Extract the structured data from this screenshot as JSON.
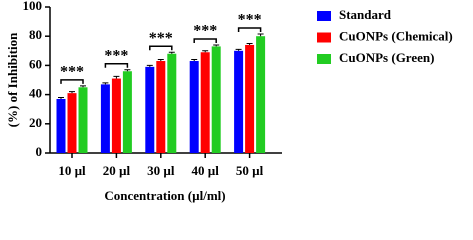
{
  "chart_data": {
    "type": "bar",
    "y_label": "(%) of Inhibition",
    "x_label": "Concentration (µl/ml)",
    "categories": [
      "10 µl",
      "20 µl",
      "30 µl",
      "40 µl",
      "50 µl"
    ],
    "series": [
      {
        "name": "Standard",
        "color": "#0000ff",
        "values": [
          37,
          47,
          59,
          63,
          70
        ],
        "errors": [
          1,
          1,
          1,
          1,
          1
        ]
      },
      {
        "name": "CuONPs (Chemical)",
        "color": "#ff0000",
        "values": [
          41,
          51,
          63,
          69,
          74
        ],
        "errors": [
          1,
          1.5,
          1,
          1,
          1
        ]
      },
      {
        "name": "CuONPs (Green)",
        "color": "#22cc22",
        "values": [
          45,
          56,
          68,
          73,
          80
        ],
        "errors": [
          1,
          1,
          1,
          1,
          1.5
        ]
      }
    ],
    "annotations": [
      "***",
      "***",
      "***",
      "***",
      "***"
    ],
    "ylim": [
      0,
      100
    ],
    "yticks": [
      0,
      20,
      40,
      60,
      80,
      100
    ],
    "legend": "right"
  }
}
